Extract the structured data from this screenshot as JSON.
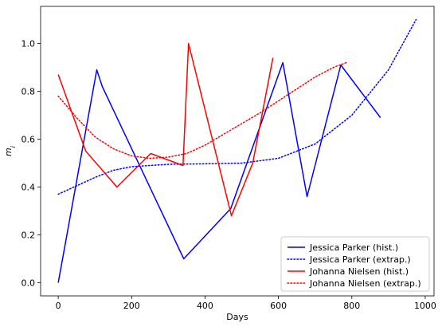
{
  "chart_data": {
    "type": "line",
    "xlabel": "Days",
    "ylabel": "m_i",
    "xlim": [
      -48,
      1024
    ],
    "ylim": [
      -0.055,
      1.155
    ],
    "x_ticks": [
      0,
      200,
      400,
      600,
      800,
      1000
    ],
    "y_ticks": [
      0.0,
      0.2,
      0.4,
      0.6,
      0.8,
      1.0
    ],
    "x_tick_labels": [
      "0",
      "200",
      "400",
      "600",
      "800",
      "1000"
    ],
    "y_tick_labels": [
      "0.0",
      "0.2",
      "0.4",
      "0.6",
      "0.8",
      "1.0"
    ],
    "grid": false,
    "legend_position": "lower-right",
    "series": [
      {
        "name": "Jessica Parker (hist.)",
        "color": "#0000ff",
        "style": "solid",
        "points": [
          [
            0,
            0.0
          ],
          [
            105,
            0.89
          ],
          [
            120,
            0.82
          ],
          [
            342,
            0.1
          ],
          [
            470,
            0.31
          ],
          [
            612,
            0.92
          ],
          [
            678,
            0.36
          ],
          [
            770,
            0.91
          ],
          [
            878,
            0.69
          ]
        ]
      },
      {
        "name": "Jessica Parker (extrap.)",
        "color": "#0000ff",
        "style": "dotted",
        "points": [
          [
            0,
            0.37
          ],
          [
            50,
            0.405
          ],
          [
            100,
            0.44
          ],
          [
            150,
            0.47
          ],
          [
            200,
            0.485
          ],
          [
            300,
            0.495
          ],
          [
            400,
            0.497
          ],
          [
            500,
            0.5
          ],
          [
            600,
            0.52
          ],
          [
            700,
            0.58
          ],
          [
            800,
            0.7
          ],
          [
            900,
            0.89
          ],
          [
            975,
            1.1
          ]
        ]
      },
      {
        "name": "Johanna Nielsen (hist.)",
        "color": "#ff0000",
        "style": "solid",
        "points": [
          [
            0,
            0.87
          ],
          [
            75,
            0.55
          ],
          [
            160,
            0.4
          ],
          [
            252,
            0.54
          ],
          [
            340,
            0.49
          ],
          [
            355,
            1.0
          ],
          [
            472,
            0.28
          ],
          [
            530,
            0.5
          ],
          [
            585,
            0.94
          ]
        ]
      },
      {
        "name": "Johanna Nielsen (extrap.)",
        "color": "#ff0000",
        "style": "dotted",
        "points": [
          [
            0,
            0.78
          ],
          [
            50,
            0.69
          ],
          [
            100,
            0.61
          ],
          [
            150,
            0.56
          ],
          [
            200,
            0.53
          ],
          [
            250,
            0.52
          ],
          [
            300,
            0.525
          ],
          [
            350,
            0.54
          ],
          [
            400,
            0.575
          ],
          [
            450,
            0.62
          ],
          [
            500,
            0.665
          ],
          [
            550,
            0.71
          ],
          [
            600,
            0.76
          ],
          [
            650,
            0.81
          ],
          [
            700,
            0.86
          ],
          [
            750,
            0.9
          ],
          [
            785,
            0.92
          ]
        ]
      }
    ]
  }
}
